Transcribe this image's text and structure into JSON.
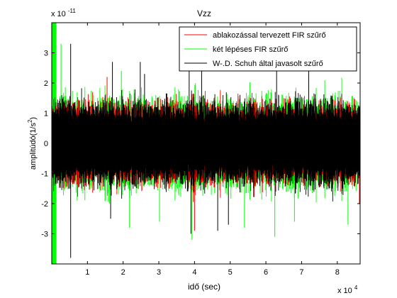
{
  "chart_data": {
    "type": "line",
    "title": "Vzz",
    "xlabel": "idő (sec)",
    "ylabel": "amplitúdó(1/s²)",
    "ylabel_base": "amplitúdó(1/s",
    "ylabel_exp": "2",
    "ylabel_close": ")",
    "y_exponent_label": "x 10",
    "y_exponent": "-11",
    "x_exponent_label": "x 10",
    "x_exponent": "4",
    "xlim": [
      0,
      86400
    ],
    "ylim": [
      -4e-11,
      4e-11
    ],
    "x_ticks": [
      10000,
      20000,
      30000,
      40000,
      50000,
      60000,
      70000,
      80000
    ],
    "x_tick_labels": [
      "1",
      "2",
      "3",
      "4",
      "5",
      "6",
      "7",
      "8"
    ],
    "y_ticks": [
      -3e-11,
      -2e-11,
      -1e-11,
      0,
      1e-11,
      2e-11,
      3e-11
    ],
    "y_tick_labels": [
      "-3",
      "-2",
      "-1",
      "0",
      "1",
      "2",
      "3"
    ],
    "grid": false,
    "legend_position": "top-right",
    "series": [
      {
        "name": "ablakozással tervezett FIR szűrő",
        "color": "#ff0000",
        "typical_amplitude": 1.1e-11,
        "spikes": [
          [
            15500,
            2.2e-11
          ],
          [
            40000,
            -2.9e-11
          ],
          [
            86200,
            -2e-11
          ]
        ]
      },
      {
        "name": "két lépéses FIR szűrő",
        "color": "#00ff00",
        "typical_amplitude": 1.25e-11,
        "spikes": [
          [
            2600,
            3.3e-11
          ],
          [
            19500,
            2.4e-11
          ],
          [
            21800,
            -2.8e-11
          ],
          [
            30200,
            -2.6e-11
          ],
          [
            39300,
            -3.2e-11
          ],
          [
            54000,
            -2.8e-11
          ],
          [
            62500,
            -3.1e-11
          ],
          [
            68000,
            -2.6e-11
          ],
          [
            83000,
            -2.7e-11
          ]
        ]
      },
      {
        "name": "W-.D. Schuh által javasolt szűrő",
        "color": "#000000",
        "typical_amplitude": 1.15e-11,
        "spikes": [
          [
            5300,
            3.3e-11
          ],
          [
            5300,
            -3.8e-11
          ],
          [
            16500,
            -2.5e-11
          ],
          [
            17000,
            2.7e-11
          ],
          [
            24800,
            2.7e-11
          ],
          [
            26000,
            2.3e-11
          ],
          [
            38500,
            3.1e-11
          ],
          [
            39000,
            -3e-11
          ],
          [
            42000,
            2.8e-11
          ],
          [
            46500,
            -2.9e-11
          ],
          [
            49500,
            -2.7e-11
          ],
          [
            63000,
            2.9e-11
          ],
          [
            72000,
            2.7e-11
          ]
        ]
      }
    ],
    "leading_band": {
      "x": [
        0,
        1300
      ],
      "color": "#00ff00"
    }
  }
}
